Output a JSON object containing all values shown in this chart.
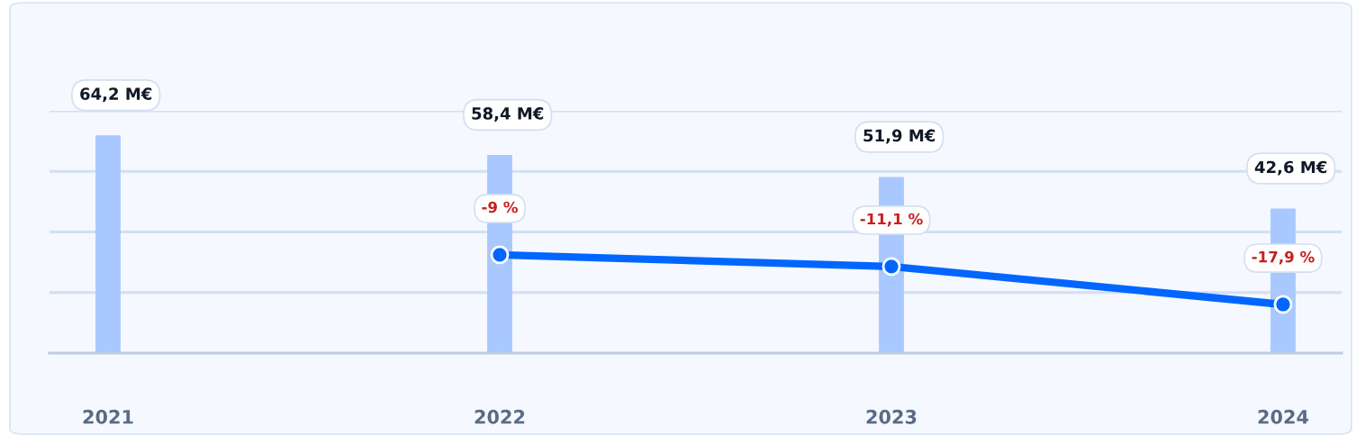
{
  "chart_data": {
    "type": "bar",
    "categories": [
      "2021",
      "2022",
      "2023",
      "2024"
    ],
    "series": [
      {
        "color": "#a8c8ff",
        "values": [
          64.2,
          58.4,
          51.9,
          42.6
        ],
        "value_labels": [
          "64,2 M€",
          "58,4 M€",
          "51,9 M€",
          "42,6 M€"
        ]
      },
      {
        "type": "line",
        "axis": "y2",
        "color": "#0066ff",
        "values": [
          null,
          -9,
          -11.1,
          -17.9
        ],
        "value_labels": [
          null,
          "-9 %",
          "-11,1 %",
          "-17,9 %"
        ]
      }
    ],
    "ylim": [
      0,
      71.4
    ],
    "yticks": [
      {
        "value": 17.85,
        "label": null
      },
      {
        "value": 35.7,
        "label": null
      },
      {
        "value": 53.55,
        "label": null
      },
      {
        "value": 71.4,
        "label": null
      }
    ],
    "grid": "y",
    "marker": "circle",
    "line_style": "solid",
    "tick_labels": "x"
  }
}
